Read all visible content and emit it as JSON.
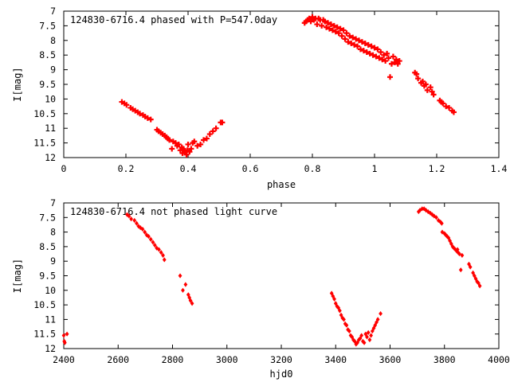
{
  "chart_data": [
    {
      "type": "scatter",
      "title": "124830-6716.4 phased with P=547.0day",
      "xlabel": "phase",
      "ylabel": "I[mag]",
      "xlim": [
        0,
        1.4
      ],
      "ylim": [
        7,
        12
      ],
      "y_inverted": true,
      "grid": false,
      "marker": "plus",
      "color": "#ff0000",
      "xticks": [
        "0",
        "0.2",
        "0.4",
        "0.6",
        "0.8",
        "1",
        "1.2",
        "1.4"
      ],
      "yticks": [
        "7",
        "7.5",
        "8",
        "8.5",
        "9",
        "9.5",
        "10",
        "10.5",
        "11",
        "11.5",
        "12"
      ],
      "x": [
        0.187,
        0.195,
        0.202,
        0.215,
        0.222,
        0.23,
        0.238,
        0.245,
        0.255,
        0.262,
        0.27,
        0.28,
        0.3,
        0.305,
        0.312,
        0.318,
        0.325,
        0.33,
        0.335,
        0.34,
        0.348,
        0.352,
        0.36,
        0.365,
        0.37,
        0.375,
        0.38,
        0.382,
        0.385,
        0.39,
        0.395,
        0.398,
        0.4,
        0.405,
        0.41,
        0.415,
        0.42,
        0.43,
        0.44,
        0.45,
        0.46,
        0.47,
        0.48,
        0.49,
        0.505,
        0.51,
        0.775,
        0.78,
        0.785,
        0.79,
        0.795,
        0.8,
        0.805,
        0.81,
        0.815,
        0.82,
        0.825,
        0.83,
        0.835,
        0.84,
        0.845,
        0.85,
        0.855,
        0.86,
        0.865,
        0.87,
        0.875,
        0.88,
        0.885,
        0.89,
        0.895,
        0.9,
        0.905,
        0.91,
        0.915,
        0.92,
        0.925,
        0.93,
        0.935,
        0.94,
        0.945,
        0.95,
        0.955,
        0.96,
        0.965,
        0.97,
        0.975,
        0.98,
        0.985,
        0.99,
        0.995,
        1.0,
        1.005,
        1.01,
        1.015,
        1.02,
        1.025,
        1.03,
        1.035,
        1.04,
        1.045,
        1.05,
        1.055,
        1.06,
        1.065,
        1.07,
        1.075,
        1.08,
        1.13,
        1.135,
        1.14,
        1.15,
        1.155,
        1.16,
        1.165,
        1.17,
        1.18,
        1.185,
        1.19,
        1.21,
        1.215,
        1.22,
        1.23,
        1.24,
        1.25,
        1.255
      ],
      "y": [
        10.1,
        10.15,
        10.2,
        10.3,
        10.35,
        10.4,
        10.45,
        10.5,
        10.55,
        10.6,
        10.65,
        10.7,
        11.05,
        11.1,
        11.15,
        11.2,
        11.25,
        11.3,
        11.35,
        11.4,
        11.7,
        11.45,
        11.5,
        11.6,
        11.55,
        11.75,
        11.65,
        11.85,
        11.7,
        11.8,
        11.9,
        11.75,
        11.55,
        11.8,
        11.7,
        11.5,
        11.45,
        11.6,
        11.55,
        11.4,
        11.35,
        11.2,
        11.1,
        11.0,
        10.8,
        10.8,
        7.4,
        7.35,
        7.3,
        7.25,
        7.35,
        7.2,
        7.3,
        7.25,
        7.45,
        7.25,
        7.3,
        7.5,
        7.3,
        7.35,
        7.55,
        7.4,
        7.6,
        7.45,
        7.65,
        7.5,
        7.7,
        7.55,
        7.75,
        7.6,
        7.85,
        7.65,
        7.95,
        7.75,
        8.05,
        7.85,
        8.1,
        7.9,
        8.15,
        7.95,
        8.2,
        8.0,
        8.3,
        8.05,
        8.35,
        8.1,
        8.4,
        8.15,
        8.45,
        8.2,
        8.5,
        8.25,
        8.55,
        8.3,
        8.6,
        8.4,
        8.65,
        8.5,
        8.7,
        8.45,
        8.6,
        9.25,
        8.8,
        8.55,
        8.75,
        8.65,
        8.8,
        8.7,
        9.1,
        9.15,
        9.3,
        9.45,
        9.4,
        9.55,
        9.5,
        9.7,
        9.6,
        9.75,
        9.85,
        10.05,
        10.1,
        10.15,
        10.25,
        10.3,
        10.4,
        10.45
      ]
    },
    {
      "type": "scatter",
      "title": "124830-6716.4 not phased light curve",
      "xlabel": "hjd0",
      "ylabel": "I[mag]",
      "xlim": [
        2400,
        4000
      ],
      "ylim": [
        7,
        12
      ],
      "y_inverted": true,
      "grid": false,
      "marker": "diamond",
      "color": "#ff0000",
      "xticks": [
        "2400",
        "2600",
        "2800",
        "3000",
        "3200",
        "3400",
        "3600",
        "3800",
        "4000"
      ],
      "yticks": [
        "7",
        "7.5",
        "8",
        "8.5",
        "9",
        "9.5",
        "10",
        "10.5",
        "11",
        "11.5",
        "12"
      ],
      "x": [
        2400,
        2402,
        2404,
        2412,
        2633,
        2640,
        2648,
        2660,
        2668,
        2675,
        2682,
        2690,
        2698,
        2705,
        2712,
        2720,
        2728,
        2735,
        2742,
        2750,
        2758,
        2765,
        2770,
        2828,
        2838,
        2848,
        2858,
        2862,
        2866,
        2872,
        3385,
        3390,
        3395,
        3400,
        3405,
        3410,
        3415,
        3420,
        3425,
        3430,
        3435,
        3440,
        3445,
        3450,
        3455,
        3460,
        3465,
        3470,
        3475,
        3480,
        3485,
        3490,
        3495,
        3500,
        3505,
        3510,
        3515,
        3520,
        3525,
        3530,
        3535,
        3540,
        3545,
        3550,
        3555,
        3565,
        3705,
        3710,
        3718,
        3725,
        3732,
        3740,
        3748,
        3755,
        3762,
        3770,
        3778,
        3785,
        3790,
        3792,
        3800,
        3805,
        3810,
        3815,
        3820,
        3825,
        3830,
        3835,
        3840,
        3845,
        3848,
        3850,
        3855,
        3860,
        3865,
        3890,
        3895,
        3905,
        3910,
        3915,
        3920,
        3925,
        3930
      ],
      "y": [
        11.55,
        11.75,
        11.8,
        11.5,
        7.4,
        7.45,
        7.55,
        7.6,
        7.7,
        7.8,
        7.85,
        7.9,
        8.0,
        8.1,
        8.15,
        8.25,
        8.35,
        8.45,
        8.55,
        8.6,
        8.7,
        8.8,
        8.95,
        9.5,
        10.0,
        9.8,
        10.15,
        10.25,
        10.35,
        10.45,
        10.1,
        10.2,
        10.3,
        10.45,
        10.55,
        10.6,
        10.7,
        10.85,
        10.95,
        11.0,
        11.15,
        11.2,
        11.35,
        11.4,
        11.55,
        11.6,
        11.7,
        11.75,
        11.85,
        11.8,
        11.7,
        11.65,
        11.55,
        11.75,
        11.8,
        11.5,
        11.6,
        11.45,
        11.7,
        11.55,
        11.4,
        11.3,
        11.2,
        11.1,
        11.0,
        10.8,
        7.3,
        7.25,
        7.2,
        7.2,
        7.25,
        7.3,
        7.35,
        7.4,
        7.45,
        7.5,
        7.6,
        7.65,
        7.7,
        8.0,
        8.05,
        8.1,
        8.15,
        8.2,
        8.3,
        8.4,
        8.5,
        8.55,
        8.6,
        8.65,
        8.6,
        8.7,
        8.75,
        9.3,
        8.8,
        9.1,
        9.2,
        9.4,
        9.5,
        9.6,
        9.7,
        9.75,
        9.85
      ]
    }
  ]
}
